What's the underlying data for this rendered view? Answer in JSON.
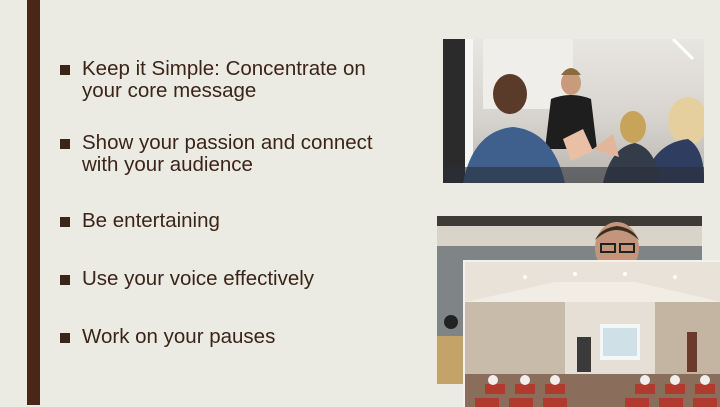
{
  "bullets": [
    {
      "text": "Keep it Simple: Concentrate on your core message"
    },
    {
      "text": "Show your passion and connect with your audience"
    },
    {
      "text": "Be entertaining"
    },
    {
      "text": "Use your voice effectively"
    },
    {
      "text": "Work on your pauses"
    }
  ],
  "colors": {
    "background": "#ebebe4",
    "accent": "#4a2618",
    "text": "#3b2418"
  },
  "images": {
    "top": "speaker-audience-photo",
    "middle": "man-with-glasses-photo",
    "bottom": "lecture-hall-photo"
  }
}
